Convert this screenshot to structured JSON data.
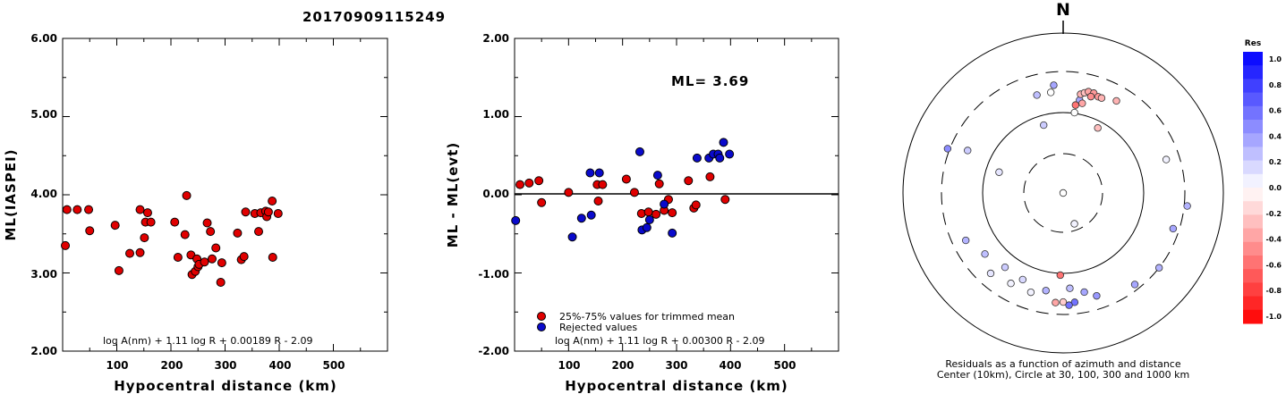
{
  "event_id": "20170909115249",
  "colors": {
    "trimmed": "#e00000",
    "rejected": "#0a0acc",
    "outline": "#000000"
  },
  "chart_data": [
    {
      "type": "scatter",
      "title": "",
      "xlabel": "Hypocentral distance (km)",
      "ylabel": "ML(IASPEI)",
      "xlim": [
        0,
        600
      ],
      "ylim": [
        2.0,
        6.0
      ],
      "xticks": [
        "100",
        "200",
        "300",
        "400",
        "500"
      ],
      "yticks": [
        "2.00",
        "3.00",
        "4.00",
        "5.00",
        "6.00"
      ],
      "formula": "log A(nm) + 1.11 log R + 0.00189 R - 2.09",
      "series": [
        {
          "color": "red",
          "points": [
            [
              5,
              3.35
            ],
            [
              8,
              3.81
            ],
            [
              27,
              3.81
            ],
            [
              48,
              3.81
            ],
            [
              50,
              3.54
            ],
            [
              97,
              3.61
            ],
            [
              104,
              3.03
            ],
            [
              124,
              3.25
            ],
            [
              143,
              3.81
            ],
            [
              143,
              3.26
            ],
            [
              151,
              3.45
            ],
            [
              153,
              3.65
            ],
            [
              157,
              3.77
            ],
            [
              163,
              3.65
            ],
            [
              207,
              3.65
            ],
            [
              213,
              3.2
            ],
            [
              226,
              3.49
            ],
            [
              229,
              3.99
            ],
            [
              237,
              3.23
            ],
            [
              239,
              2.98
            ],
            [
              245,
              3.02
            ],
            [
              248,
              3.18
            ],
            [
              250,
              3.08
            ],
            [
              252,
              3.11
            ],
            [
              262,
              3.14
            ],
            [
              267,
              3.64
            ],
            [
              273,
              3.53
            ],
            [
              276,
              3.18
            ],
            [
              283,
              3.32
            ],
            [
              292,
              2.88
            ],
            [
              294,
              3.13
            ],
            [
              323,
              3.51
            ],
            [
              330,
              3.17
            ],
            [
              335,
              3.21
            ],
            [
              338,
              3.78
            ],
            [
              355,
              3.76
            ],
            [
              362,
              3.53
            ],
            [
              366,
              3.77
            ],
            [
              375,
              3.79
            ],
            [
              377,
              3.72
            ],
            [
              380,
              3.78
            ],
            [
              387,
              3.92
            ],
            [
              388,
              3.2
            ],
            [
              398,
              3.76
            ]
          ]
        }
      ]
    },
    {
      "type": "scatter",
      "title": "",
      "xlabel": "Hypocentral distance (km)",
      "ylabel": "ML - ML(evt)",
      "xlim": [
        0,
        600
      ],
      "ylim": [
        -2.0,
        2.0
      ],
      "xticks": [
        "100",
        "200",
        "300",
        "400",
        "500"
      ],
      "yticks": [
        "-2.00",
        "-1.00",
        "0.00",
        "1.00",
        "2.00"
      ],
      "annotation": "ML= 3.69",
      "formula": "log A(nm) + 1.11 log R + 0.00300 R - 2.09",
      "legend": {
        "position": "bottom-left",
        "entries": [
          "25%-75% values for trimmed mean",
          "Rejected values"
        ]
      },
      "series": [
        {
          "name": "25%-75% values for trimmed mean",
          "color": "red",
          "points": [
            [
              10,
              0.13
            ],
            [
              27,
              0.15
            ],
            [
              45,
              0.18
            ],
            [
              50,
              -0.1
            ],
            [
              100,
              0.03
            ],
            [
              153,
              0.13
            ],
            [
              155,
              -0.08
            ],
            [
              163,
              0.13
            ],
            [
              207,
              0.2
            ],
            [
              222,
              0.03
            ],
            [
              235,
              -0.24
            ],
            [
              248,
              -0.22
            ],
            [
              262,
              -0.25
            ],
            [
              268,
              0.14
            ],
            [
              277,
              -0.2
            ],
            [
              285,
              -0.06
            ],
            [
              292,
              -0.23
            ],
            [
              322,
              0.18
            ],
            [
              332,
              -0.17
            ],
            [
              336,
              -0.13
            ],
            [
              362,
              0.23
            ],
            [
              390,
              -0.06
            ]
          ]
        },
        {
          "name": "Rejected values",
          "color": "blue",
          "points": [
            [
              2,
              -0.33
            ],
            [
              107,
              -0.54
            ],
            [
              124,
              -0.3
            ],
            [
              140,
              0.28
            ],
            [
              142,
              -0.26
            ],
            [
              157,
              0.28
            ],
            [
              232,
              0.55
            ],
            [
              236,
              -0.45
            ],
            [
              245,
              -0.42
            ],
            [
              250,
              -0.32
            ],
            [
              265,
              0.25
            ],
            [
              277,
              -0.12
            ],
            [
              292,
              -0.49
            ],
            [
              338,
              0.47
            ],
            [
              360,
              0.47
            ],
            [
              368,
              0.52
            ],
            [
              377,
              0.52
            ],
            [
              380,
              0.47
            ],
            [
              387,
              0.67
            ],
            [
              398,
              0.52
            ]
          ]
        }
      ]
    },
    {
      "type": "scatter",
      "subtype": "polar",
      "north_label": "N",
      "caption_line1": "Residuals as a function of azimuth and distance",
      "caption_line2": "Center (10km), Circle at 30, 100, 300 and 1000 km",
      "colorbar": {
        "title": "Res",
        "range": [
          -1.0,
          1.0
        ],
        "labels": [
          "1.0",
          "0.8",
          "0.6",
          "0.4",
          "0.2",
          "0.0",
          "-0.2",
          "-0.4",
          "-0.6",
          "-0.8",
          "-1.0"
        ]
      },
      "points": [
        {
          "az": 0.5,
          "dist": 9.5,
          "res": 0.0
        },
        {
          "az": 160,
          "dist": 25,
          "res": 0.05
        },
        {
          "az": 288,
          "dist": 68,
          "res": 0.1
        },
        {
          "az": 344,
          "dist": 75,
          "res": 0.2
        },
        {
          "az": 28,
          "dist": 82,
          "res": -0.25
        },
        {
          "az": 72,
          "dist": 210,
          "res": 0.05
        },
        {
          "az": 108,
          "dist": 255,
          "res": 0.35
        },
        {
          "az": 142,
          "dist": 260,
          "res": 0.35
        },
        {
          "az": 128,
          "dist": 300,
          "res": 0.3
        },
        {
          "az": 96,
          "dist": 330,
          "res": 0.3
        },
        {
          "az": 182,
          "dist": 105,
          "res": -0.55
        },
        {
          "az": 176,
          "dist": 150,
          "res": 0.25
        },
        {
          "az": 168,
          "dist": 175,
          "res": 0.35
        },
        {
          "az": 162,
          "dist": 210,
          "res": 0.4
        },
        {
          "az": 174,
          "dist": 220,
          "res": 0.55
        },
        {
          "az": 177,
          "dist": 235,
          "res": 0.55
        },
        {
          "az": 180,
          "dist": 215,
          "res": -0.2
        },
        {
          "az": 184,
          "dist": 220,
          "res": -0.35
        },
        {
          "az": 190,
          "dist": 165,
          "res": 0.3
        },
        {
          "az": 198,
          "dist": 190,
          "res": 0.05
        },
        {
          "az": 205,
          "dist": 150,
          "res": 0.15
        },
        {
          "az": 210,
          "dist": 190,
          "res": 0.05
        },
        {
          "az": 218,
          "dist": 145,
          "res": 0.2
        },
        {
          "az": 222,
          "dist": 210,
          "res": 0.1
        },
        {
          "az": 232,
          "dist": 165,
          "res": 0.25
        },
        {
          "az": 244,
          "dist": 210,
          "res": 0.3
        },
        {
          "az": 294,
          "dist": 190,
          "res": 0.2
        },
        {
          "az": 291,
          "dist": 320,
          "res": 0.45
        },
        {
          "az": 345,
          "dist": 175,
          "res": 0.25
        },
        {
          "az": 353,
          "dist": 175,
          "res": 0.0
        },
        {
          "az": 355,
          "dist": 210,
          "res": 0.35
        },
        {
          "az": 8,
          "dist": 102,
          "res": 0.0
        },
        {
          "az": 10,
          "dist": 145,
          "res": 0.35
        },
        {
          "az": 8,
          "dist": 125,
          "res": -0.55
        },
        {
          "az": 10,
          "dist": 170,
          "res": -0.3
        },
        {
          "az": 12,
          "dist": 180,
          "res": -0.25
        },
        {
          "az": 14,
          "dist": 190,
          "res": -0.35
        },
        {
          "az": 17,
          "dist": 190,
          "res": -0.4
        },
        {
          "az": 16,
          "dist": 170,
          "res": -0.45
        },
        {
          "az": 20,
          "dist": 180,
          "res": -0.4
        },
        {
          "az": 22,
          "dist": 180,
          "res": -0.3
        },
        {
          "az": 12,
          "dist": 135,
          "res": -0.35
        },
        {
          "az": 30,
          "dist": 200,
          "res": -0.3
        }
      ]
    }
  ]
}
